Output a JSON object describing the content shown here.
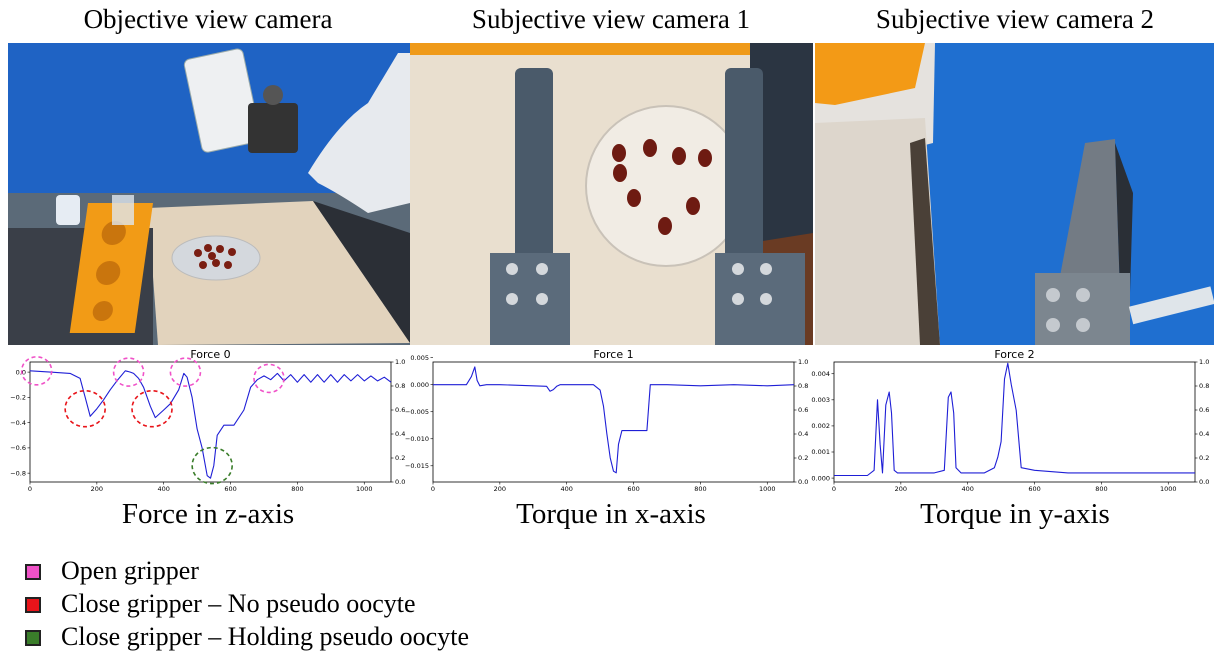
{
  "panels": [
    {
      "camera_title": "Objective view camera",
      "axis_caption": "Force in z-axis"
    },
    {
      "camera_title": "Subjective view camera 1",
      "axis_caption": "Torque in x-axis"
    },
    {
      "camera_title": "Subjective view camera 2",
      "axis_caption": "Torque in y-axis"
    }
  ],
  "legend": [
    {
      "label": "Open gripper",
      "color": "#f052c8"
    },
    {
      "label": "Close gripper – No pseudo oocyte",
      "color": "#e8141a"
    },
    {
      "label": "Close gripper – Holding pseudo oocyte",
      "color": "#3a7d2a"
    }
  ],
  "chart_data": [
    {
      "type": "line",
      "title": "Force 0",
      "xlim": [
        0,
        1080
      ],
      "ylim": [
        -0.87,
        0.08
      ],
      "x_ticks": [
        0,
        200,
        400,
        600,
        800,
        1000
      ],
      "y_ticks": [
        0.0,
        -0.2,
        -0.4,
        -0.6,
        -0.8
      ],
      "y_tick_labels": [
        "0.0",
        "−0.2",
        "−0.4",
        "−0.6",
        "−0.8"
      ],
      "y2_ticks": [
        0.0,
        0.2,
        0.4,
        0.6,
        0.8,
        1.0
      ],
      "line_color": "#1f1fd6",
      "series": [
        {
          "x": [
            0,
            60,
            120,
            150,
            165,
            180,
            200,
            220,
            240,
            260,
            285,
            300,
            310,
            325,
            340,
            360,
            375,
            400,
            420,
            445,
            460,
            470,
            485,
            500,
            515,
            530,
            540,
            550,
            560,
            580,
            610,
            640,
            660,
            680,
            700,
            720,
            740,
            760,
            780,
            800,
            820,
            840,
            860,
            880,
            900,
            920,
            940,
            960,
            980,
            1000,
            1020,
            1040,
            1060,
            1080
          ],
          "y": [
            0.01,
            0.0,
            -0.01,
            -0.05,
            -0.2,
            -0.35,
            -0.29,
            -0.22,
            -0.14,
            -0.07,
            0.01,
            0.0,
            -0.01,
            -0.05,
            -0.12,
            -0.27,
            -0.36,
            -0.3,
            -0.25,
            -0.14,
            -0.01,
            -0.04,
            -0.2,
            -0.45,
            -0.6,
            -0.82,
            -0.84,
            -0.74,
            -0.5,
            -0.42,
            -0.42,
            -0.3,
            -0.12,
            -0.06,
            -0.03,
            -0.06,
            -0.01,
            -0.07,
            -0.02,
            -0.08,
            -0.02,
            -0.08,
            -0.02,
            -0.08,
            -0.02,
            -0.08,
            -0.02,
            -0.07,
            -0.02,
            -0.07,
            -0.03,
            -0.07,
            -0.04,
            -0.08
          ]
        }
      ],
      "annotations": [
        {
          "type": "open",
          "x": 20,
          "y": 0.01
        },
        {
          "type": "open",
          "x": 295,
          "y": 0.0
        },
        {
          "type": "open",
          "x": 465,
          "y": 0.0
        },
        {
          "type": "open",
          "x": 715,
          "y": -0.05
        },
        {
          "type": "close-empty",
          "x": 165,
          "y": -0.29
        },
        {
          "type": "close-empty",
          "x": 365,
          "y": -0.29
        },
        {
          "type": "close-holding",
          "x": 545,
          "y": -0.74
        }
      ]
    },
    {
      "type": "line",
      "title": "Force 1",
      "xlim": [
        0,
        1080
      ],
      "ylim": [
        -0.018,
        0.0042
      ],
      "x_ticks": [
        0,
        200,
        400,
        600,
        800,
        1000
      ],
      "y_ticks": [
        0.005,
        0.0,
        -0.005,
        -0.01,
        -0.015
      ],
      "y_tick_labels": [
        "0.005",
        "0.000",
        "−0.005",
        "−0.010",
        "−0.015"
      ],
      "y2_ticks": [
        0.0,
        0.2,
        0.4,
        0.6,
        0.8,
        1.0
      ],
      "line_color": "#1f1fd6",
      "series": [
        {
          "x": [
            0,
            100,
            115,
            125,
            132,
            140,
            160,
            200,
            340,
            350,
            360,
            370,
            380,
            400,
            450,
            480,
            500,
            510,
            520,
            530,
            540,
            548,
            555,
            565,
            580,
            600,
            640,
            650,
            700,
            800,
            900,
            1000,
            1080
          ],
          "y": [
            0.0,
            0.0,
            0.0015,
            0.0033,
            0.0008,
            -0.0002,
            0.0,
            0.0,
            -0.0003,
            -0.0012,
            -0.0009,
            -0.0003,
            0.0,
            0.0,
            0.0,
            0.0,
            -0.001,
            -0.004,
            -0.009,
            -0.0135,
            -0.016,
            -0.0163,
            -0.011,
            -0.0085,
            -0.0085,
            -0.0085,
            -0.0085,
            0.0,
            0.0,
            -0.0002,
            0.0,
            -0.0002,
            0.0
          ]
        }
      ]
    },
    {
      "type": "line",
      "title": "Force 2",
      "xlim": [
        0,
        1080
      ],
      "ylim": [
        -0.00015,
        0.00445
      ],
      "x_ticks": [
        0,
        200,
        400,
        600,
        800,
        1000
      ],
      "y_ticks": [
        0.0,
        0.001,
        0.002,
        0.003,
        0.004
      ],
      "y_tick_labels": [
        "0.000",
        "0.001",
        "0.002",
        "0.003",
        "0.004"
      ],
      "y2_ticks": [
        0.0,
        0.2,
        0.4,
        0.6,
        0.8,
        1.0
      ],
      "line_color": "#1f1fd6",
      "series": [
        {
          "x": [
            0,
            100,
            120,
            130,
            138,
            145,
            155,
            165,
            172,
            180,
            190,
            200,
            300,
            330,
            342,
            350,
            358,
            365,
            380,
            450,
            480,
            490,
            500,
            510,
            520,
            530,
            545,
            560,
            600,
            700,
            800,
            900,
            1000,
            1080
          ],
          "y": [
            0.0001,
            0.0001,
            0.0003,
            0.003,
            0.0013,
            0.0002,
            0.0028,
            0.0033,
            0.0025,
            0.0003,
            0.0002,
            0.0002,
            0.0002,
            0.0003,
            0.0031,
            0.0033,
            0.0025,
            0.0004,
            0.0002,
            0.0002,
            0.0004,
            0.0008,
            0.0014,
            0.0038,
            0.0044,
            0.0036,
            0.0026,
            0.0004,
            0.0003,
            0.0002,
            0.0002,
            0.0002,
            0.0002,
            0.0002
          ]
        }
      ]
    }
  ]
}
